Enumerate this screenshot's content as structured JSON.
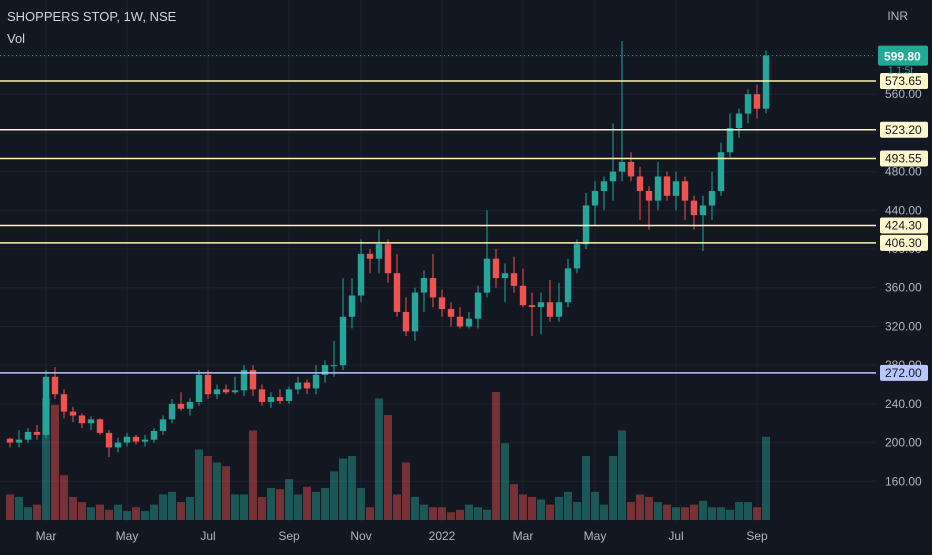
{
  "header": {
    "title": "SHOPPERS STOP, 1W, NSE",
    "volume_label": "Vol",
    "currency": "INR"
  },
  "colors": {
    "background": "#131722",
    "up": "#26a69a",
    "down": "#ef5350",
    "level_line": "#fff2b3",
    "support_line": "#b7c6ff",
    "last_price": "#22ab94",
    "axis_text": "#b2b5be"
  },
  "chart_data": {
    "type": "candlestick",
    "title": "SHOPPERS STOP, 1W, NSE",
    "xlabel": "",
    "ylabel": "",
    "ylim": [
      120,
      616
    ],
    "y_ticks": [
      160,
      200,
      240,
      280,
      320,
      360,
      400,
      440,
      480,
      520,
      560
    ],
    "x_ticks": [
      {
        "label": "Mar",
        "week": 5
      },
      {
        "label": "May",
        "week": 14
      },
      {
        "label": "Jul",
        "week": 23
      },
      {
        "label": "Sep",
        "week": 32
      },
      {
        "label": "Nov",
        "week": 40
      },
      {
        "label": "2022",
        "week": 49
      },
      {
        "label": "Mar",
        "week": 58
      },
      {
        "label": "May",
        "week": 66
      },
      {
        "label": "Jul",
        "week": 75
      },
      {
        "label": "Sep",
        "week": 84
      }
    ],
    "horizontal_levels": [
      {
        "label": "573.65",
        "value": 573.65,
        "style": "resistance"
      },
      {
        "label": "523.20",
        "value": 523.2,
        "style": "resistance"
      },
      {
        "label": "493.55",
        "value": 493.55,
        "style": "resistance"
      },
      {
        "label": "424.30",
        "value": 424.3,
        "style": "resistance"
      },
      {
        "label": "406.30",
        "value": 406.3,
        "style": "resistance"
      },
      {
        "label": "272.00",
        "value": 272.0,
        "style": "support"
      }
    ],
    "last_price": {
      "label": "599.80",
      "value": 599.8
    },
    "partial_price_label": "1 1:5t",
    "candles": [
      [
        1,
        204,
        205,
        195,
        200
      ],
      [
        2,
        200,
        213,
        195,
        203
      ],
      [
        3,
        203,
        215,
        200,
        211
      ],
      [
        4,
        211,
        218,
        203,
        208
      ],
      [
        5,
        208,
        275,
        205,
        268
      ],
      [
        6,
        268,
        278,
        245,
        250
      ],
      [
        7,
        250,
        255,
        225,
        232
      ],
      [
        8,
        232,
        237,
        221,
        228
      ],
      [
        9,
        228,
        230,
        215,
        220
      ],
      [
        10,
        220,
        227,
        213,
        224
      ],
      [
        11,
        224,
        225,
        208,
        210
      ],
      [
        12,
        210,
        213,
        185,
        195
      ],
      [
        13,
        195,
        205,
        190,
        200
      ],
      [
        14,
        200,
        210,
        196,
        206
      ],
      [
        15,
        206,
        208,
        198,
        201
      ],
      [
        16,
        201,
        208,
        196,
        203
      ],
      [
        17,
        203,
        215,
        200,
        212
      ],
      [
        18,
        212,
        228,
        208,
        224
      ],
      [
        19,
        224,
        245,
        220,
        240
      ],
      [
        20,
        240,
        252,
        233,
        235
      ],
      [
        21,
        235,
        246,
        228,
        242
      ],
      [
        22,
        242,
        275,
        238,
        270
      ],
      [
        23,
        270,
        275,
        245,
        250
      ],
      [
        24,
        250,
        260,
        245,
        255
      ],
      [
        25,
        255,
        260,
        250,
        252
      ],
      [
        26,
        252,
        268,
        250,
        254
      ],
      [
        27,
        254,
        280,
        248,
        275
      ],
      [
        28,
        275,
        280,
        248,
        255
      ],
      [
        29,
        255,
        260,
        238,
        242
      ],
      [
        30,
        242,
        252,
        236,
        247
      ],
      [
        31,
        247,
        255,
        240,
        243
      ],
      [
        32,
        243,
        258,
        240,
        255
      ],
      [
        33,
        255,
        268,
        250,
        262
      ],
      [
        34,
        262,
        265,
        250,
        256
      ],
      [
        35,
        256,
        280,
        250,
        270
      ],
      [
        36,
        270,
        285,
        262,
        280
      ],
      [
        37,
        280,
        305,
        268,
        280
      ],
      [
        38,
        280,
        370,
        275,
        330
      ],
      [
        39,
        330,
        370,
        318,
        352
      ],
      [
        40,
        352,
        410,
        345,
        395
      ],
      [
        41,
        395,
        400,
        375,
        390
      ],
      [
        42,
        390,
        420,
        375,
        405
      ],
      [
        43,
        405,
        410,
        365,
        375
      ],
      [
        44,
        375,
        395,
        330,
        335
      ],
      [
        45,
        335,
        350,
        310,
        315
      ],
      [
        46,
        315,
        360,
        305,
        355
      ],
      [
        47,
        355,
        378,
        335,
        370
      ],
      [
        48,
        370,
        395,
        340,
        350
      ],
      [
        49,
        350,
        358,
        330,
        338
      ],
      [
        50,
        338,
        345,
        320,
        330
      ],
      [
        51,
        330,
        340,
        318,
        320
      ],
      [
        52,
        320,
        335,
        318,
        328
      ],
      [
        53,
        328,
        362,
        318,
        355
      ],
      [
        54,
        355,
        440,
        350,
        390
      ],
      [
        55,
        390,
        400,
        360,
        370
      ],
      [
        56,
        370,
        385,
        345,
        375
      ],
      [
        57,
        375,
        392,
        355,
        362
      ],
      [
        58,
        362,
        380,
        340,
        342
      ],
      [
        59,
        342,
        355,
        310,
        340
      ],
      [
        60,
        340,
        355,
        312,
        345
      ],
      [
        61,
        345,
        368,
        325,
        330
      ],
      [
        62,
        330,
        365,
        325,
        345
      ],
      [
        63,
        345,
        390,
        340,
        380
      ],
      [
        64,
        380,
        410,
        375,
        405
      ],
      [
        65,
        405,
        458,
        400,
        445
      ],
      [
        66,
        445,
        470,
        425,
        460
      ],
      [
        67,
        460,
        475,
        440,
        470
      ],
      [
        68,
        470,
        530,
        450,
        480
      ],
      [
        69,
        480,
        615,
        470,
        490
      ],
      [
        70,
        490,
        500,
        470,
        475
      ],
      [
        71,
        475,
        485,
        430,
        460
      ],
      [
        72,
        460,
        465,
        420,
        450
      ],
      [
        73,
        450,
        490,
        440,
        475
      ],
      [
        74,
        475,
        480,
        450,
        455
      ],
      [
        75,
        455,
        480,
        440,
        470
      ],
      [
        76,
        470,
        475,
        430,
        450
      ],
      [
        77,
        450,
        455,
        420,
        435
      ],
      [
        78,
        435,
        455,
        398,
        445
      ],
      [
        79,
        445,
        480,
        430,
        460
      ],
      [
        80,
        460,
        510,
        455,
        500
      ],
      [
        81,
        500,
        540,
        495,
        525
      ],
      [
        82,
        525,
        545,
        515,
        540
      ],
      [
        83,
        540,
        565,
        530,
        560
      ],
      [
        84,
        560,
        570,
        535,
        545
      ],
      [
        85,
        545,
        605,
        540,
        600
      ]
    ],
    "volume": {
      "note": "relative bar heights",
      "bars": [
        [
          1,
          0.2
        ],
        [
          2,
          0.18
        ],
        [
          3,
          0.1
        ],
        [
          4,
          0.12
        ],
        [
          5,
          0.95
        ],
        [
          6,
          0.9
        ],
        [
          7,
          0.35
        ],
        [
          8,
          0.18
        ],
        [
          9,
          0.14
        ],
        [
          10,
          0.1
        ],
        [
          11,
          0.12
        ],
        [
          12,
          0.08
        ],
        [
          13,
          0.12
        ],
        [
          14,
          0.07
        ],
        [
          15,
          0.1
        ],
        [
          16,
          0.07
        ],
        [
          17,
          0.12
        ],
        [
          18,
          0.2
        ],
        [
          19,
          0.22
        ],
        [
          20,
          0.14
        ],
        [
          21,
          0.18
        ],
        [
          22,
          0.55
        ],
        [
          23,
          0.5
        ],
        [
          24,
          0.45
        ],
        [
          25,
          0.42
        ],
        [
          26,
          0.2
        ],
        [
          27,
          0.2
        ],
        [
          28,
          0.7
        ],
        [
          29,
          0.18
        ],
        [
          30,
          0.25
        ],
        [
          31,
          0.24
        ],
        [
          32,
          0.32
        ],
        [
          33,
          0.2
        ],
        [
          34,
          0.26
        ],
        [
          35,
          0.22
        ],
        [
          36,
          0.25
        ],
        [
          37,
          0.38
        ],
        [
          38,
          0.48
        ],
        [
          39,
          0.5
        ],
        [
          40,
          0.25
        ],
        [
          41,
          0.1
        ],
        [
          42,
          0.95
        ],
        [
          43,
          0.82
        ],
        [
          44,
          0.2
        ],
        [
          45,
          0.45
        ],
        [
          46,
          0.18
        ],
        [
          47,
          0.12
        ],
        [
          48,
          0.1
        ],
        [
          49,
          0.1
        ],
        [
          50,
          0.06
        ],
        [
          51,
          0.08
        ],
        [
          52,
          0.12
        ],
        [
          53,
          0.1
        ],
        [
          54,
          0.08
        ],
        [
          55,
          1.0
        ],
        [
          56,
          0.6
        ],
        [
          57,
          0.28
        ],
        [
          58,
          0.2
        ],
        [
          59,
          0.18
        ],
        [
          60,
          0.16
        ],
        [
          61,
          0.12
        ],
        [
          62,
          0.18
        ],
        [
          63,
          0.22
        ],
        [
          64,
          0.14
        ],
        [
          65,
          0.5
        ],
        [
          66,
          0.22
        ],
        [
          67,
          0.12
        ],
        [
          68,
          0.5
        ],
        [
          69,
          0.7
        ],
        [
          70,
          0.14
        ],
        [
          71,
          0.2
        ],
        [
          72,
          0.18
        ],
        [
          73,
          0.14
        ],
        [
          74,
          0.12
        ],
        [
          75,
          0.1
        ],
        [
          76,
          0.1
        ],
        [
          77,
          0.12
        ],
        [
          78,
          0.15
        ],
        [
          79,
          0.1
        ],
        [
          80,
          0.1
        ],
        [
          81,
          0.08
        ],
        [
          82,
          0.14
        ],
        [
          83,
          0.14
        ],
        [
          84,
          0.1
        ],
        [
          85,
          0.65
        ]
      ]
    }
  }
}
